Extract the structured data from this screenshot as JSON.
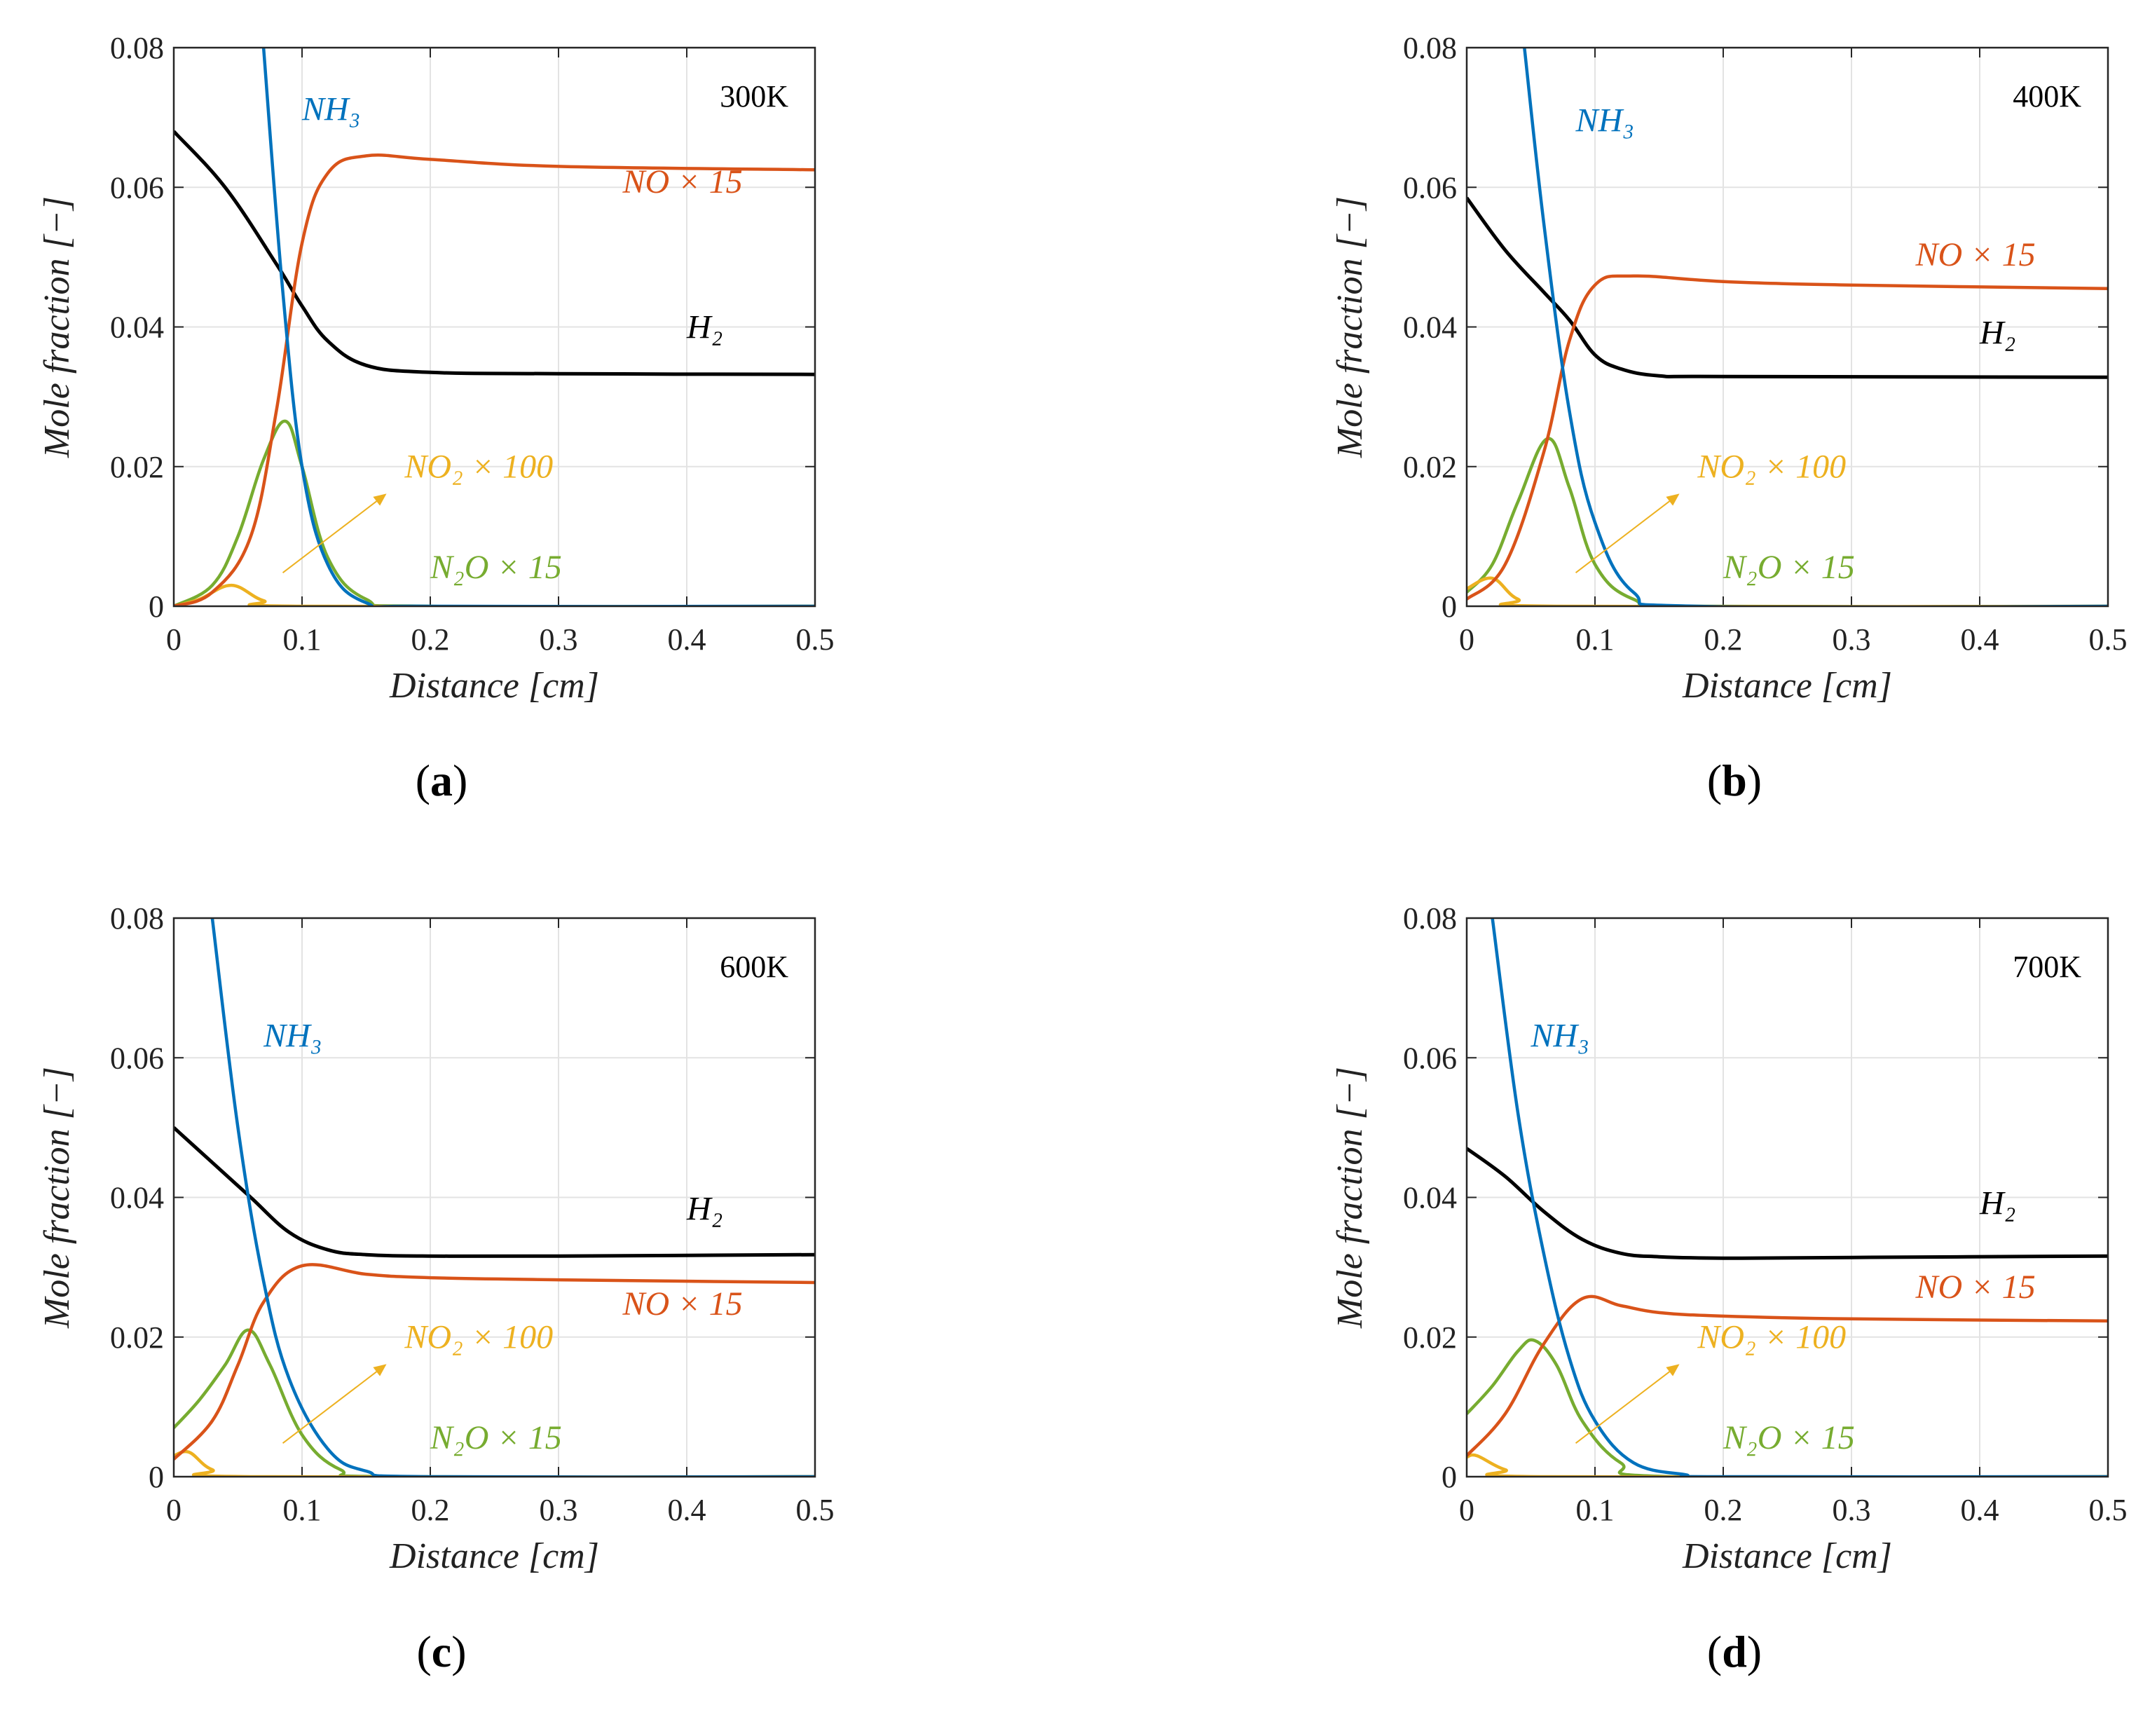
{
  "chart_data": [
    {
      "type": "line",
      "panel_label": "(a)",
      "temperature": "300K",
      "xlabel": "Distance [cm]",
      "ylabel": "Mole fraction [−]",
      "xlim": [
        0,
        0.5
      ],
      "ylim": [
        0,
        0.08
      ],
      "xticks": [
        "0",
        "0.1",
        "0.2",
        "0.3",
        "0.4",
        "0.5"
      ],
      "yticks": [
        "0",
        "0.02",
        "0.04",
        "0.06",
        "0.08"
      ],
      "grid": true,
      "series": [
        {
          "name": "NH3",
          "label": "NH₃",
          "color": "#0072BD",
          "x": [
            0.07,
            0.085,
            0.1,
            0.12,
            0.15,
            0.2,
            0.5
          ],
          "y": [
            0.08,
            0.045,
            0.02,
            0.006,
            0.0005,
            0,
            0
          ]
        },
        {
          "name": "NO",
          "label": "NO × 15",
          "color": "#D95319",
          "x": [
            0,
            0.03,
            0.06,
            0.08,
            0.1,
            0.12,
            0.15,
            0.2,
            0.3,
            0.5
          ],
          "y": [
            0,
            0.002,
            0.01,
            0.028,
            0.052,
            0.062,
            0.0645,
            0.064,
            0.063,
            0.0625
          ]
        },
        {
          "name": "H2",
          "label": "H₂",
          "color": "#000000",
          "x": [
            0,
            0.04,
            0.08,
            0.1,
            0.12,
            0.15,
            0.2,
            0.3,
            0.5
          ],
          "y": [
            0.068,
            0.06,
            0.049,
            0.043,
            0.038,
            0.0345,
            0.0335,
            0.0333,
            0.0332
          ]
        },
        {
          "name": "N2O",
          "label": "N₂O × 15",
          "color": "#77AC30",
          "x": [
            0,
            0.03,
            0.05,
            0.07,
            0.087,
            0.1,
            0.12,
            0.15,
            0.2,
            0.5
          ],
          "y": [
            0,
            0.003,
            0.01,
            0.021,
            0.0265,
            0.02,
            0.007,
            0.001,
            0,
            0
          ]
        },
        {
          "name": "NO2",
          "label": "NO₂ × 100",
          "color": "#EDB120",
          "x": [
            0,
            0.02,
            0.045,
            0.07,
            0.1,
            0.5
          ],
          "y": [
            0,
            0.001,
            0.003,
            0.0008,
            0,
            0
          ]
        }
      ]
    },
    {
      "type": "line",
      "panel_label": "(b)",
      "temperature": "400K",
      "xlabel": "Distance [cm]",
      "ylabel": "Mole fraction [−]",
      "xlim": [
        0,
        0.5
      ],
      "ylim": [
        0,
        0.08
      ],
      "xticks": [
        "0",
        "0.1",
        "0.2",
        "0.3",
        "0.4",
        "0.5"
      ],
      "yticks": [
        "0",
        "0.02",
        "0.04",
        "0.06",
        "0.08"
      ],
      "grid": true,
      "series": [
        {
          "name": "NH3",
          "label": "NH₃",
          "color": "#0072BD",
          "x": [
            0.045,
            0.06,
            0.08,
            0.1,
            0.13,
            0.18,
            0.5
          ],
          "y": [
            0.08,
            0.055,
            0.028,
            0.012,
            0.002,
            0,
            0
          ]
        },
        {
          "name": "NO",
          "label": "NO × 15",
          "color": "#D95319",
          "x": [
            0,
            0.03,
            0.06,
            0.08,
            0.1,
            0.13,
            0.2,
            0.3,
            0.5
          ],
          "y": [
            0.001,
            0.006,
            0.022,
            0.038,
            0.046,
            0.0473,
            0.0465,
            0.046,
            0.0455
          ]
        },
        {
          "name": "H2",
          "label": "H₂",
          "color": "#000000",
          "x": [
            0,
            0.03,
            0.06,
            0.08,
            0.1,
            0.12,
            0.15,
            0.2,
            0.5
          ],
          "y": [
            0.0585,
            0.051,
            0.045,
            0.041,
            0.036,
            0.034,
            0.033,
            0.0329,
            0.0328
          ]
        },
        {
          "name": "N2O",
          "label": "N₂O × 15",
          "color": "#77AC30",
          "x": [
            0,
            0.02,
            0.04,
            0.063,
            0.08,
            0.1,
            0.13,
            0.18,
            0.5
          ],
          "y": [
            0.002,
            0.006,
            0.015,
            0.024,
            0.017,
            0.006,
            0.001,
            0,
            0
          ]
        },
        {
          "name": "NO2",
          "label": "NO₂ × 100",
          "color": "#EDB120",
          "x": [
            0,
            0.02,
            0.04,
            0.07,
            0.5
          ],
          "y": [
            0.0025,
            0.004,
            0.001,
            0,
            0
          ]
        }
      ]
    },
    {
      "type": "line",
      "panel_label": "(c)",
      "temperature": "600K",
      "xlabel": "Distance [cm]",
      "ylabel": "Mole fraction [−]",
      "xlim": [
        0,
        0.5
      ],
      "ylim": [
        0,
        0.08
      ],
      "xticks": [
        "0",
        "0.1",
        "0.2",
        "0.3",
        "0.4",
        "0.5"
      ],
      "yticks": [
        "0",
        "0.02",
        "0.04",
        "0.06",
        "0.08"
      ],
      "grid": true,
      "series": [
        {
          "name": "NH3",
          "label": "NH₃",
          "color": "#0072BD",
          "x": [
            0.03,
            0.05,
            0.07,
            0.09,
            0.12,
            0.15,
            0.2,
            0.5
          ],
          "y": [
            0.08,
            0.05,
            0.028,
            0.014,
            0.004,
            0.0008,
            0,
            0
          ]
        },
        {
          "name": "NO",
          "label": "NO × 15",
          "color": "#D95319",
          "x": [
            0,
            0.03,
            0.05,
            0.07,
            0.1,
            0.15,
            0.2,
            0.3,
            0.5
          ],
          "y": [
            0.0025,
            0.008,
            0.016,
            0.025,
            0.0302,
            0.029,
            0.0285,
            0.0282,
            0.0278
          ]
        },
        {
          "name": "H2",
          "label": "H₂",
          "color": "#000000",
          "x": [
            0,
            0.03,
            0.06,
            0.09,
            0.12,
            0.15,
            0.2,
            0.3,
            0.5
          ],
          "y": [
            0.05,
            0.045,
            0.04,
            0.035,
            0.0325,
            0.0318,
            0.0316,
            0.0316,
            0.0318
          ]
        },
        {
          "name": "N2O",
          "label": "N₂O × 15",
          "color": "#77AC30",
          "x": [
            0,
            0.02,
            0.04,
            0.058,
            0.075,
            0.1,
            0.13,
            0.17,
            0.5
          ],
          "y": [
            0.007,
            0.011,
            0.016,
            0.021,
            0.016,
            0.006,
            0.001,
            0,
            0
          ]
        },
        {
          "name": "NO2",
          "label": "NO₂ × 100",
          "color": "#EDB120",
          "x": [
            0,
            0.012,
            0.03,
            0.06,
            0.5
          ],
          "y": [
            0.003,
            0.0035,
            0.001,
            0,
            0
          ]
        }
      ]
    },
    {
      "type": "line",
      "panel_label": "(d)",
      "temperature": "700K",
      "xlabel": "Distance [cm]",
      "ylabel": "Mole fraction [−]",
      "xlim": [
        0,
        0.5
      ],
      "ylim": [
        0,
        0.08
      ],
      "xticks": [
        "0",
        "0.1",
        "0.2",
        "0.3",
        "0.4",
        "0.5"
      ],
      "yticks": [
        "0",
        "0.02",
        "0.04",
        "0.06",
        "0.08"
      ],
      "grid": true,
      "series": [
        {
          "name": "NH3",
          "label": "NH₃",
          "color": "#0072BD",
          "x": [
            0.02,
            0.04,
            0.06,
            0.08,
            0.1,
            0.13,
            0.17,
            0.2,
            0.5
          ],
          "y": [
            0.08,
            0.052,
            0.032,
            0.017,
            0.008,
            0.002,
            0.0003,
            0,
            0
          ]
        },
        {
          "name": "NO",
          "label": "NO × 15",
          "color": "#D95319",
          "x": [
            0,
            0.03,
            0.06,
            0.09,
            0.12,
            0.15,
            0.2,
            0.3,
            0.5
          ],
          "y": [
            0.003,
            0.009,
            0.019,
            0.0255,
            0.0245,
            0.0235,
            0.023,
            0.0226,
            0.0223
          ]
        },
        {
          "name": "H2",
          "label": "H₂",
          "color": "#000000",
          "x": [
            0,
            0.03,
            0.06,
            0.09,
            0.12,
            0.15,
            0.2,
            0.3,
            0.5
          ],
          "y": [
            0.047,
            0.043,
            0.038,
            0.034,
            0.032,
            0.0315,
            0.0313,
            0.0314,
            0.0316
          ]
        },
        {
          "name": "N2O",
          "label": "N₂O × 15",
          "color": "#77AC30",
          "x": [
            0,
            0.02,
            0.04,
            0.053,
            0.07,
            0.09,
            0.12,
            0.16,
            0.5
          ],
          "y": [
            0.009,
            0.013,
            0.018,
            0.0195,
            0.016,
            0.008,
            0.002,
            0,
            0
          ]
        },
        {
          "name": "NO2",
          "label": "NO₂ × 100",
          "color": "#EDB120",
          "x": [
            0,
            0.008,
            0.03,
            0.06,
            0.5
          ],
          "y": [
            0.0028,
            0.003,
            0.001,
            0,
            0
          ]
        }
      ]
    }
  ]
}
